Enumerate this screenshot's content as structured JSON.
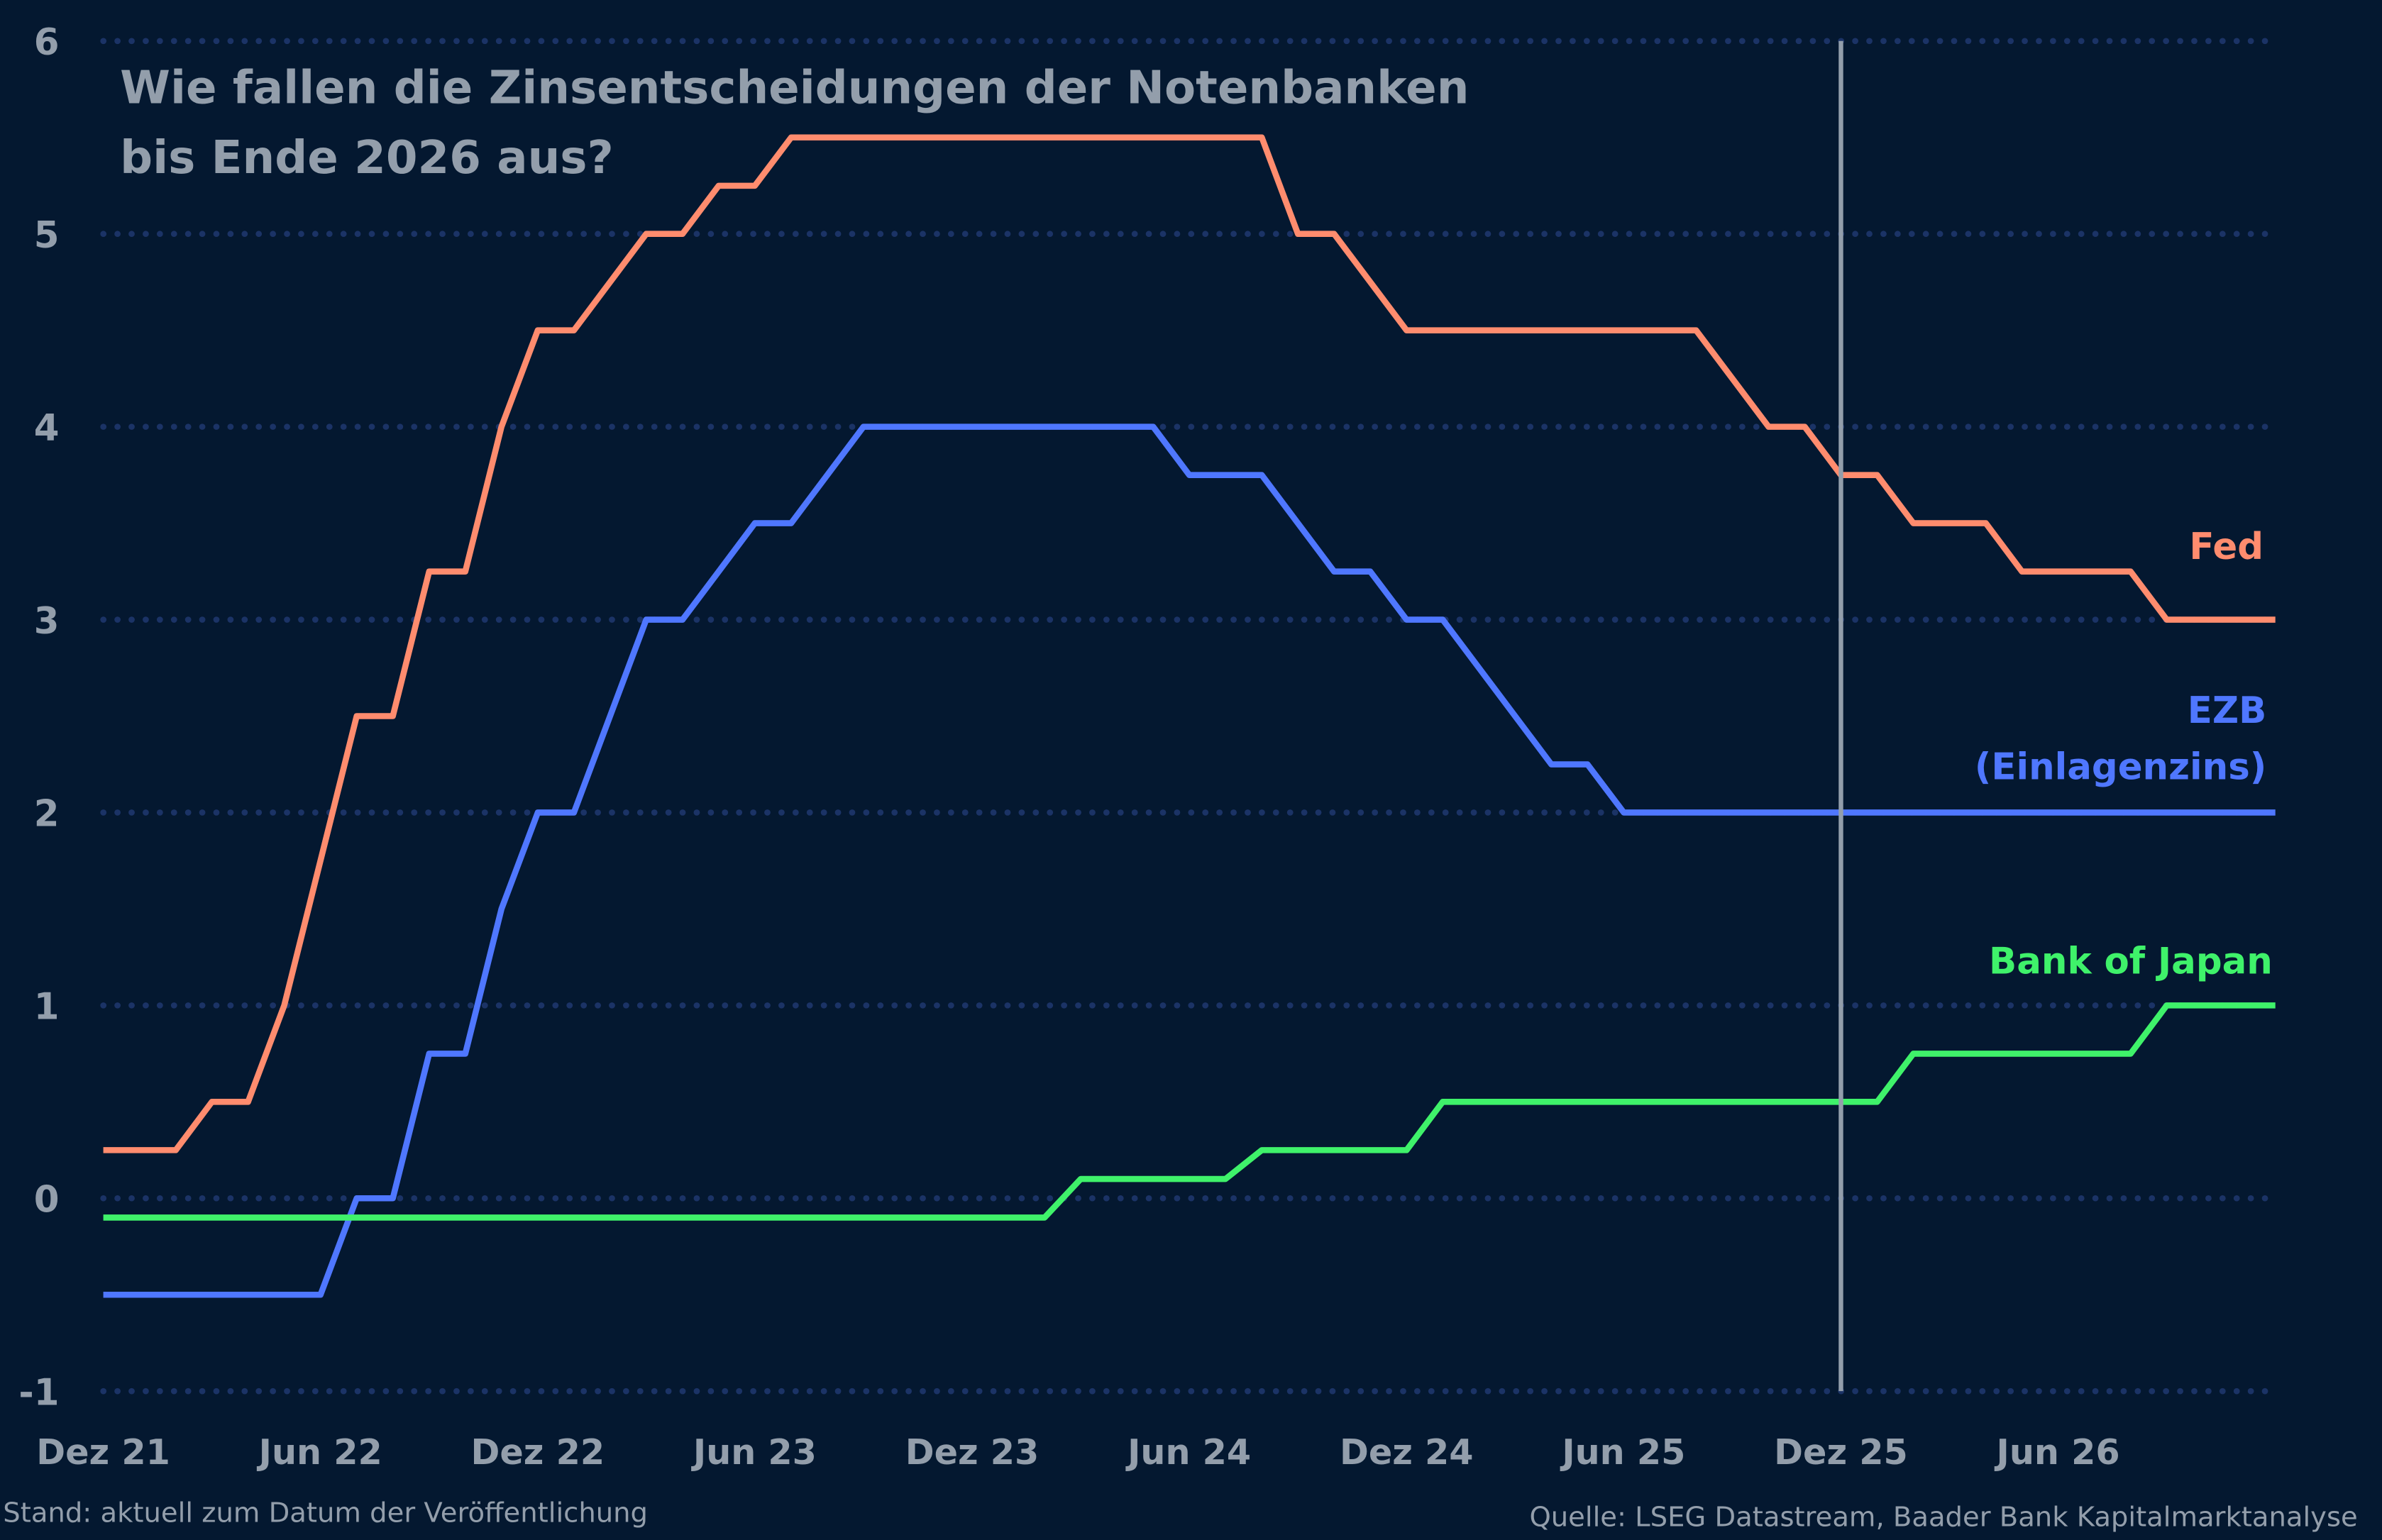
{
  "chart_data": {
    "type": "line",
    "title": "Wie fallen die Zinsentscheidungen der Notenbanken bis Ende 2026 aus?",
    "title_lines": [
      "Wie fallen die Zinsentscheidungen der Notenbanken",
      "bis Ende 2026 aus?"
    ],
    "xlabel": "",
    "ylabel": "",
    "ylim": [
      -1,
      6
    ],
    "yticks": [
      "6",
      "5",
      "4",
      "3",
      "2",
      "1",
      "0",
      "-1"
    ],
    "xticks": [
      "Dez 21",
      "Jun 22",
      "Dez 22",
      "Jun 23",
      "Dez 23",
      "Jun 24",
      "Dez 24",
      "Jun 25",
      "Dez 25",
      "Jun 26"
    ],
    "x_unit": "months since Dez 21",
    "grid": "horizontal dotted",
    "marker_line": {
      "label_x": "Dez 25",
      "month": 48,
      "color": "#939eab"
    },
    "series": [
      {
        "name": "Fed",
        "color": "#ff8c6e",
        "points": [
          [
            0,
            0.25
          ],
          [
            2,
            0.25
          ],
          [
            3,
            0.5
          ],
          [
            4,
            0.5
          ],
          [
            5,
            1.0
          ],
          [
            7,
            2.5
          ],
          [
            8,
            2.5
          ],
          [
            9,
            3.25
          ],
          [
            10,
            3.25
          ],
          [
            11,
            4.0
          ],
          [
            12,
            4.5
          ],
          [
            13,
            4.5
          ],
          [
            15,
            5.0
          ],
          [
            16,
            5.0
          ],
          [
            17,
            5.25
          ],
          [
            18,
            5.25
          ],
          [
            19,
            5.5
          ],
          [
            32,
            5.5
          ],
          [
            33,
            5.0
          ],
          [
            34,
            5.0
          ],
          [
            36,
            4.5
          ],
          [
            44,
            4.5
          ],
          [
            46,
            4.0
          ],
          [
            47,
            4.0
          ],
          [
            48,
            3.75
          ],
          [
            49,
            3.75
          ],
          [
            50,
            3.5
          ],
          [
            52,
            3.5
          ],
          [
            53,
            3.25
          ],
          [
            56,
            3.25
          ],
          [
            57,
            3.0
          ],
          [
            60,
            3.0
          ]
        ]
      },
      {
        "name": "EZB (Einlagenzins)",
        "color": "#4f77ff",
        "points": [
          [
            0,
            -0.5
          ],
          [
            6,
            -0.5
          ],
          [
            7,
            0
          ],
          [
            8,
            0
          ],
          [
            9,
            0.75
          ],
          [
            10,
            0.75
          ],
          [
            11,
            1.5
          ],
          [
            12,
            2.0
          ],
          [
            13,
            2.0
          ],
          [
            14,
            2.5
          ],
          [
            15,
            3.0
          ],
          [
            16,
            3.0
          ],
          [
            17,
            3.25
          ],
          [
            18,
            3.5
          ],
          [
            19,
            3.5
          ],
          [
            21,
            4.0
          ],
          [
            29,
            4.0
          ],
          [
            30,
            3.75
          ],
          [
            32,
            3.75
          ],
          [
            34,
            3.25
          ],
          [
            35,
            3.25
          ],
          [
            36,
            3.0
          ],
          [
            37,
            3.0
          ],
          [
            40,
            2.25
          ],
          [
            41,
            2.25
          ],
          [
            42,
            2.0
          ],
          [
            60,
            2.0
          ]
        ]
      },
      {
        "name": "Bank of Japan",
        "color": "#3ff26a",
        "points": [
          [
            0,
            -0.1
          ],
          [
            26,
            -0.1
          ],
          [
            27,
            0.1
          ],
          [
            31,
            0.1
          ],
          [
            32,
            0.25
          ],
          [
            36,
            0.25
          ],
          [
            37,
            0.5
          ],
          [
            49,
            0.5
          ],
          [
            50,
            0.75
          ],
          [
            56,
            0.75
          ],
          [
            57,
            1.0
          ],
          [
            60,
            1.0
          ]
        ]
      }
    ]
  },
  "labels": {
    "fed": "Fed",
    "ezb_line1": "EZB",
    "ezb_line2": "(Einlagenzins)",
    "boj": "Bank of Japan"
  },
  "footer": {
    "left": "Stand: aktuell zum Datum der Veröffentlichung",
    "right": "Quelle: LSEG Datastream, Baader Bank Kapitalmarktanalyse"
  },
  "colors": {
    "background": "#041830",
    "grid": "#1b3366",
    "text": "#939eab"
  }
}
